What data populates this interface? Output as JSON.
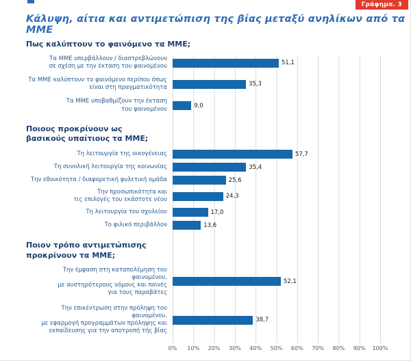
{
  "page": {
    "badge": "Γράφημα. 3",
    "title": "Κάλυψη, αίτια και αντιμετώπιση της βίας μεταξύ ανηλίκων από τα ΜΜΕ"
  },
  "chart_data": {
    "type": "bar",
    "orientation": "horizontal",
    "bar_color": "#1668ac",
    "xlim": [
      0,
      100
    ],
    "grid": "vertical",
    "x_ticks": [
      "0%",
      "10%",
      "20%",
      "30%",
      "40%",
      "50%",
      "60%",
      "70%",
      "80%",
      "90%",
      "100%"
    ],
    "groups": [
      {
        "header": "Πως καλύπτουν το φαινόμενο τα ΜΜΕ;",
        "items": [
          {
            "label": "Τα ΜΜΕ υπερβάλλουν / διαστρεβλώνουν\nσε σχέση με την έκταση του φαινομένου",
            "value": 51.1,
            "value_label": "51,1"
          },
          {
            "label": "Τα ΜΜΕ καλύπτουν το φαινόμενο περίπου όπως\nείναι στη πραγματικότητα",
            "value": 35.3,
            "value_label": "35,3"
          },
          {
            "label": "Τα ΜΜΕ υποβαθμίζουν την έκταση\nτου φαινομένου",
            "value": 9.0,
            "value_label": "9,0"
          }
        ]
      },
      {
        "header": "Ποιους προκρίνουν ως\nβασικούς υπαίτιους τα ΜΜΕ;",
        "items": [
          {
            "label": "Τη λειτουργία της οικογένειας",
            "value": 57.7,
            "value_label": "57,7"
          },
          {
            "label": "Τη συνολική λειτουργία της κοινωνίας",
            "value": 35.4,
            "value_label": "35,4"
          },
          {
            "label": "Την εθνικότητα / διαφορετική φυλετική ομάδα",
            "value": 25.6,
            "value_label": "25,6"
          },
          {
            "label": "Την προσωπικότητα και\nτις επιλογές του εκάστοτε νέου",
            "value": 24.3,
            "value_label": "24,3"
          },
          {
            "label": "Τη λειτουργία του σχολείου",
            "value": 17.0,
            "value_label": "17,0"
          },
          {
            "label": "Το φιλικό περιβάλλον",
            "value": 13.6,
            "value_label": "13,6"
          }
        ]
      },
      {
        "header": "Ποιον τρόπο αντιμετώπισης\nπροκρίνουν τα ΜΜΕ;",
        "items": [
          {
            "label": "Την έμφαση στη καταπολέμηση του φαινομένου,\nμε αυστηρότερους νόμους και ποινές\nγια τους παραβάτες",
            "value": 52.1,
            "value_label": "52,1"
          },
          {
            "label": "Την επικέντρωση στην πρόληψη του φαινομένου,\nμε εφαρμογή προγραμμάτων πρόληψης και\nεκπαίδευσης για την αποτροπή τής βίας",
            "value": 38.7,
            "value_label": "38,7"
          }
        ]
      }
    ]
  }
}
